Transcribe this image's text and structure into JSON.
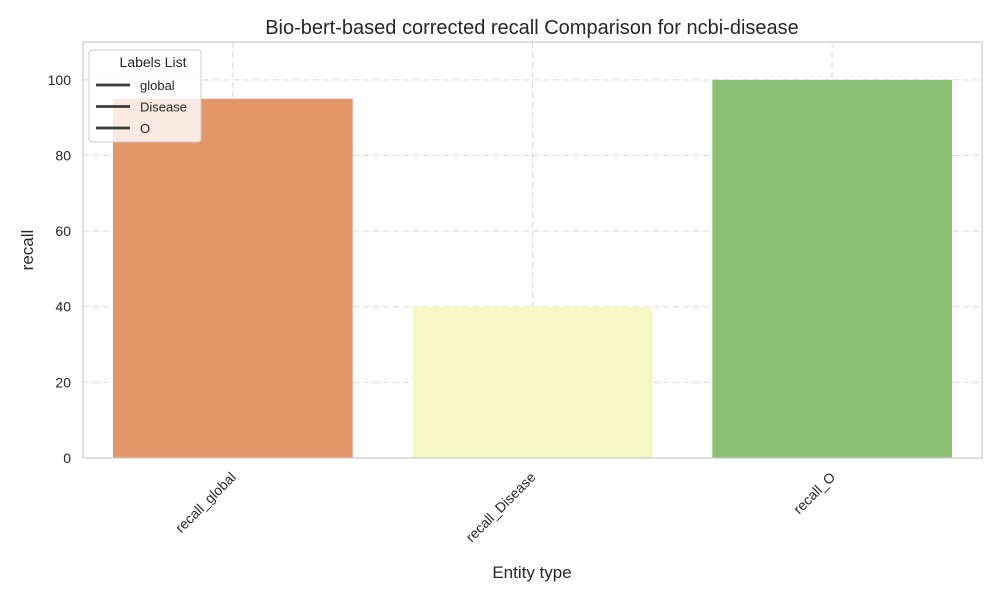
{
  "chart_data": {
    "type": "bar",
    "title": "Bio-bert-based corrected recall Comparison for ncbi-disease",
    "xlabel": "Entity type",
    "ylabel": "recall",
    "categories": [
      "recall_global",
      "recall_Disease",
      "recall_O"
    ],
    "values": [
      95,
      40,
      100
    ],
    "bar_colors": [
      "#e5956a",
      "#f5f7c5",
      "#8abe72"
    ],
    "ylim": [
      0,
      110
    ],
    "yticks": [
      0,
      20,
      40,
      60,
      80,
      100
    ],
    "grid": true,
    "legend": {
      "title": "Labels List",
      "placement": "top-left",
      "entries": [
        "global",
        "Disease",
        "O"
      ]
    }
  }
}
